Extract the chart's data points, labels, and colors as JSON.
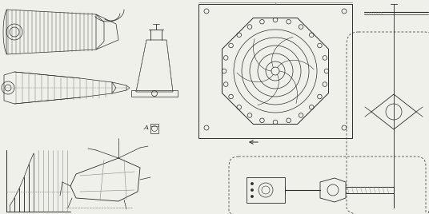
{
  "background_color": "#f0f0ea",
  "line_color": "#2a2a2a",
  "fig_width": 5.36,
  "fig_height": 2.68,
  "dpi": 100
}
